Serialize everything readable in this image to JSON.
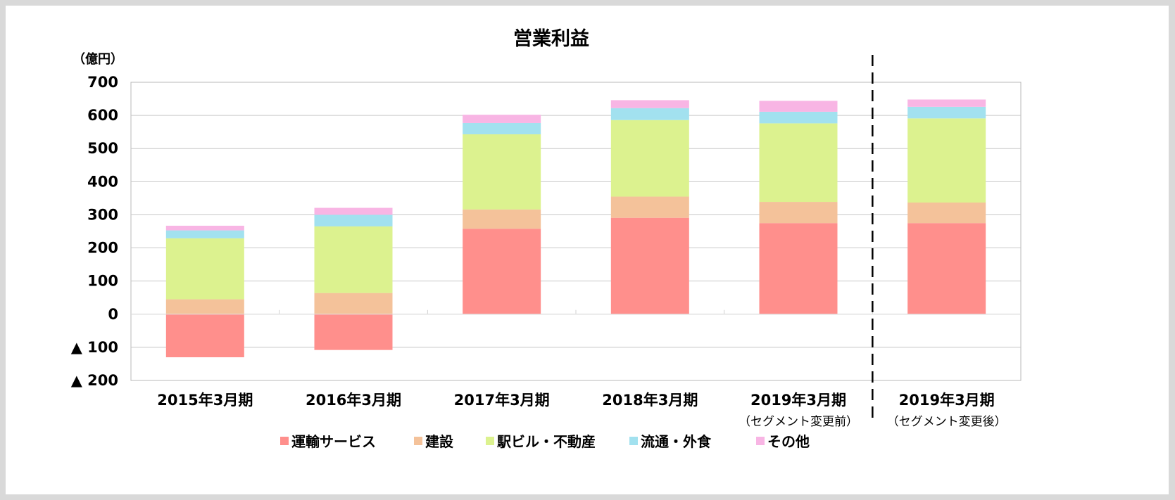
{
  "chart_data": {
    "type": "bar",
    "stacked": true,
    "title": "営業利益",
    "unit_label": "（億円）",
    "ylim": [
      -200,
      700
    ],
    "y_ticks": [
      700,
      600,
      500,
      400,
      300,
      200,
      100,
      0,
      -100,
      -200
    ],
    "y_tick_labels": [
      "700",
      "600",
      "500",
      "400",
      "300",
      "200",
      "100",
      "0",
      "▲ 100",
      "▲ 200"
    ],
    "categories": [
      "2015年3月期",
      "2016年3月期",
      "2017年3月期",
      "2018年3月期",
      "2019年3月期",
      "2019年3月期"
    ],
    "category_notes": [
      "",
      "",
      "",
      "",
      "（セグメント変更前）",
      "（セグメント変更後）"
    ],
    "series": [
      {
        "name": "運輸サービス",
        "color": "#ff8f8c",
        "values": [
          -130,
          -108,
          258,
          291,
          275,
          275
        ]
      },
      {
        "name": "建設",
        "color": "#f4c29a",
        "values": [
          45,
          64,
          58,
          64,
          64,
          62
        ]
      },
      {
        "name": "駅ビル・不動産",
        "color": "#dcf28f",
        "values": [
          184,
          201,
          227,
          231,
          237,
          254
        ]
      },
      {
        "name": "流通・外食",
        "color": "#a2e1ef",
        "values": [
          24,
          35,
          34,
          36,
          35,
          35
        ]
      },
      {
        "name": "その他",
        "color": "#f8b5e4",
        "values": [
          14,
          21,
          25,
          24,
          33,
          22
        ]
      }
    ],
    "grid": true,
    "legend_position": "bottom",
    "divider": "dashed line between the two 2019年3月期 columns"
  }
}
